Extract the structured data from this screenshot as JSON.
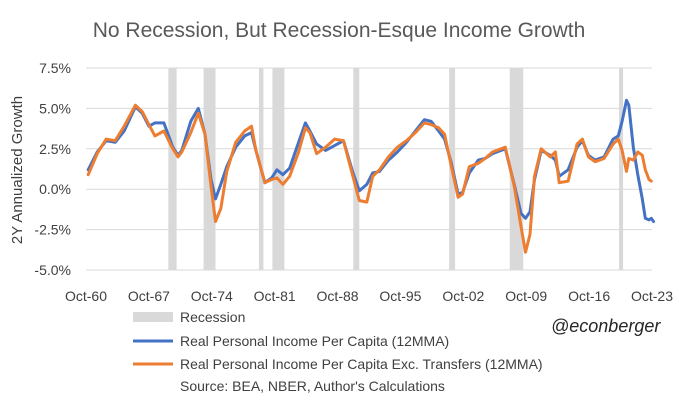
{
  "chart_data": {
    "type": "line",
    "title": "No Recession, But Recession-Esque Income Growth",
    "ylabel": "2Y Annualized Growth",
    "xlabel": "",
    "ylim": [
      -5.0,
      7.5
    ],
    "xlim": [
      "1960-10",
      "2023-10"
    ],
    "y_ticks": [
      "7.5%",
      "5.0%",
      "2.5%",
      "0.0%",
      "-2.5%",
      "-5.0%"
    ],
    "y_tick_values": [
      7.5,
      5.0,
      2.5,
      0.0,
      -2.5,
      -5.0
    ],
    "x_ticks": [
      "Oct-60",
      "Oct-67",
      "Oct-74",
      "Oct-81",
      "Oct-88",
      "Oct-95",
      "Oct-02",
      "Oct-09",
      "Oct-16",
      "Oct-23"
    ],
    "grid": "horizontal",
    "legend_position": "bottom",
    "recession_label": "Recession",
    "recessions": [
      [
        "1969-12",
        "1970-11"
      ],
      [
        "1973-11",
        "1975-03"
      ],
      [
        "1980-01",
        "1980-07"
      ],
      [
        "1981-07",
        "1982-11"
      ],
      [
        "1990-07",
        "1991-03"
      ],
      [
        "2001-03",
        "2001-11"
      ],
      [
        "2007-12",
        "2009-06"
      ],
      [
        "2020-02",
        "2020-04"
      ]
    ],
    "series": [
      {
        "name": "Real Personal Income Per Capita (12MMA)",
        "color": "#4472C4",
        "points": [
          [
            "1961-01",
            1.2
          ],
          [
            "1962-01",
            2.3
          ],
          [
            "1963-01",
            3.0
          ],
          [
            "1964-01",
            2.9
          ],
          [
            "1965-01",
            3.6
          ],
          [
            "1966-04",
            5.1
          ],
          [
            "1967-01",
            4.7
          ],
          [
            "1967-10",
            3.9
          ],
          [
            "1968-06",
            4.1
          ],
          [
            "1969-06",
            4.1
          ],
          [
            "1970-06",
            2.6
          ],
          [
            "1971-01",
            2.1
          ],
          [
            "1971-06",
            2.4
          ],
          [
            "1972-06",
            4.2
          ],
          [
            "1973-04",
            5.0
          ],
          [
            "1974-01",
            3.4
          ],
          [
            "1974-09",
            0.6
          ],
          [
            "1975-03",
            -0.6
          ],
          [
            "1975-10",
            0.3
          ],
          [
            "1976-06",
            1.4
          ],
          [
            "1977-06",
            2.6
          ],
          [
            "1978-06",
            3.3
          ],
          [
            "1979-03",
            3.5
          ],
          [
            "1979-09",
            2.4
          ],
          [
            "1980-09",
            0.4
          ],
          [
            "1981-06",
            0.7
          ],
          [
            "1982-01",
            1.2
          ],
          [
            "1982-09",
            0.9
          ],
          [
            "1983-06",
            1.3
          ],
          [
            "1984-06",
            2.9
          ],
          [
            "1985-03",
            4.1
          ],
          [
            "1985-09",
            3.6
          ],
          [
            "1986-06",
            2.8
          ],
          [
            "1987-06",
            2.4
          ],
          [
            "1988-06",
            2.7
          ],
          [
            "1989-06",
            3.0
          ],
          [
            "1990-06",
            1.1
          ],
          [
            "1991-03",
            -0.1
          ],
          [
            "1992-01",
            0.3
          ],
          [
            "1992-09",
            1.0
          ],
          [
            "1993-06",
            1.1
          ],
          [
            "1994-06",
            1.8
          ],
          [
            "1995-06",
            2.3
          ],
          [
            "1996-06",
            2.9
          ],
          [
            "1997-06",
            3.6
          ],
          [
            "1998-06",
            4.3
          ],
          [
            "1999-03",
            4.2
          ],
          [
            "2000-01",
            3.6
          ],
          [
            "2000-09",
            3.1
          ],
          [
            "2001-06",
            1.6
          ],
          [
            "2002-03",
            -0.3
          ],
          [
            "2002-09",
            -0.2
          ],
          [
            "2003-06",
            1.0
          ],
          [
            "2004-06",
            1.8
          ],
          [
            "2005-03",
            1.9
          ],
          [
            "2006-01",
            2.2
          ],
          [
            "2007-06",
            2.5
          ],
          [
            "2008-06",
            0.3
          ],
          [
            "2009-03",
            -1.5
          ],
          [
            "2009-09",
            -1.8
          ],
          [
            "2010-03",
            -1.4
          ],
          [
            "2010-09",
            0.6
          ],
          [
            "2011-06",
            2.4
          ],
          [
            "2012-06",
            2.1
          ],
          [
            "2013-01",
            1.8
          ],
          [
            "2013-06",
            0.8
          ],
          [
            "2014-06",
            1.2
          ],
          [
            "2015-06",
            2.6
          ],
          [
            "2016-01",
            3.0
          ],
          [
            "2016-09",
            2.1
          ],
          [
            "2017-06",
            1.8
          ],
          [
            "2018-06",
            2.0
          ],
          [
            "2019-06",
            3.1
          ],
          [
            "2020-01",
            3.3
          ],
          [
            "2020-06",
            4.2
          ],
          [
            "2020-12",
            5.5
          ],
          [
            "2021-03",
            5.2
          ],
          [
            "2021-09",
            2.6
          ],
          [
            "2022-03",
            0.9
          ],
          [
            "2022-09",
            -0.6
          ],
          [
            "2023-01",
            -1.8
          ],
          [
            "2023-06",
            -1.9
          ],
          [
            "2023-09",
            -1.8
          ],
          [
            "2023-12",
            -2.0
          ]
        ]
      },
      {
        "name": "Real Personal Income Per Capita Exc. Transfers (12MMA)",
        "color": "#ED7D31",
        "points": [
          [
            "1961-01",
            0.9
          ],
          [
            "1962-01",
            2.2
          ],
          [
            "1963-01",
            3.1
          ],
          [
            "1964-01",
            3.0
          ],
          [
            "1965-01",
            3.9
          ],
          [
            "1966-04",
            5.2
          ],
          [
            "1967-01",
            4.8
          ],
          [
            "1967-10",
            4.0
          ],
          [
            "1968-06",
            3.3
          ],
          [
            "1969-06",
            3.6
          ],
          [
            "1970-06",
            2.5
          ],
          [
            "1971-01",
            2.0
          ],
          [
            "1971-06",
            2.3
          ],
          [
            "1972-06",
            3.5
          ],
          [
            "1973-04",
            4.7
          ],
          [
            "1974-01",
            3.4
          ],
          [
            "1974-09",
            0.2
          ],
          [
            "1975-03",
            -2.0
          ],
          [
            "1975-10",
            -1.2
          ],
          [
            "1976-06",
            1.1
          ],
          [
            "1977-06",
            2.9
          ],
          [
            "1978-06",
            3.6
          ],
          [
            "1979-03",
            3.9
          ],
          [
            "1979-09",
            2.4
          ],
          [
            "1980-09",
            0.4
          ],
          [
            "1981-06",
            0.6
          ],
          [
            "1982-01",
            0.7
          ],
          [
            "1982-09",
            0.3
          ],
          [
            "1983-06",
            0.8
          ],
          [
            "1984-06",
            2.3
          ],
          [
            "1985-03",
            3.8
          ],
          [
            "1985-09",
            3.5
          ],
          [
            "1986-06",
            2.2
          ],
          [
            "1987-06",
            2.6
          ],
          [
            "1988-06",
            3.1
          ],
          [
            "1989-06",
            3.0
          ],
          [
            "1990-06",
            0.9
          ],
          [
            "1991-03",
            -0.7
          ],
          [
            "1992-01",
            -0.8
          ],
          [
            "1992-09",
            0.8
          ],
          [
            "1993-06",
            1.2
          ],
          [
            "1994-06",
            2.0
          ],
          [
            "1995-06",
            2.6
          ],
          [
            "1996-06",
            3.0
          ],
          [
            "1997-06",
            3.5
          ],
          [
            "1998-06",
            4.1
          ],
          [
            "1999-03",
            4.0
          ],
          [
            "2000-01",
            3.8
          ],
          [
            "2000-09",
            3.4
          ],
          [
            "2001-06",
            1.4
          ],
          [
            "2002-03",
            -0.5
          ],
          [
            "2002-09",
            -0.3
          ],
          [
            "2003-06",
            1.4
          ],
          [
            "2004-06",
            1.6
          ],
          [
            "2005-03",
            1.9
          ],
          [
            "2006-01",
            2.3
          ],
          [
            "2007-06",
            2.6
          ],
          [
            "2008-06",
            0.2
          ],
          [
            "2009-03",
            -2.3
          ],
          [
            "2009-09",
            -3.9
          ],
          [
            "2010-03",
            -2.8
          ],
          [
            "2010-09",
            0.8
          ],
          [
            "2011-06",
            2.5
          ],
          [
            "2012-06",
            2.0
          ],
          [
            "2013-01",
            2.3
          ],
          [
            "2013-06",
            0.4
          ],
          [
            "2014-06",
            0.5
          ],
          [
            "2015-06",
            2.8
          ],
          [
            "2016-01",
            3.1
          ],
          [
            "2016-09",
            2.0
          ],
          [
            "2017-06",
            1.7
          ],
          [
            "2018-06",
            1.9
          ],
          [
            "2019-06",
            2.8
          ],
          [
            "2020-01",
            3.1
          ],
          [
            "2020-06",
            2.4
          ],
          [
            "2020-12",
            1.1
          ],
          [
            "2021-03",
            1.9
          ],
          [
            "2021-09",
            1.8
          ],
          [
            "2022-03",
            2.3
          ],
          [
            "2022-09",
            2.1
          ],
          [
            "2023-01",
            1.2
          ],
          [
            "2023-06",
            0.6
          ],
          [
            "2023-09",
            0.5
          ]
        ]
      }
    ]
  },
  "watermark": "@econberger",
  "source": "Source: BEA, NBER, Author's Calculations"
}
